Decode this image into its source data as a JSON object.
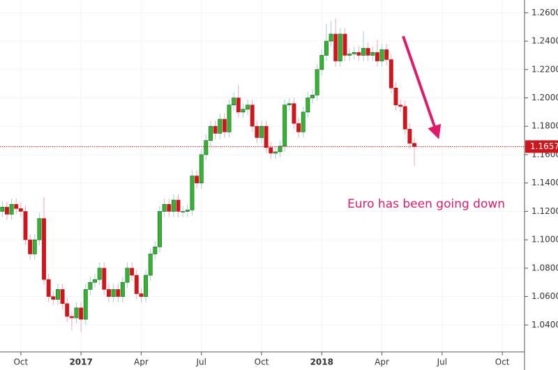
{
  "chart_data": {
    "type": "candlestick",
    "annotation": "Euro has been going down",
    "up_color": "#33b533",
    "down_color": "#d0161d",
    "grid": true,
    "ylim": [
      1.021,
      1.269
    ],
    "yticks": [
      {
        "value": 1.04,
        "label": "1.0400"
      },
      {
        "value": 1.06,
        "label": "1.0600"
      },
      {
        "value": 1.08,
        "label": "1.0800"
      },
      {
        "value": 1.1,
        "label": "1.1000"
      },
      {
        "value": 1.12,
        "label": "1.1200"
      },
      {
        "value": 1.14,
        "label": "1.1400"
      },
      {
        "value": 1.16,
        "label": "1.1600"
      },
      {
        "value": 1.18,
        "label": "1.1800"
      },
      {
        "value": 1.2,
        "label": "1.2000"
      },
      {
        "value": 1.22,
        "label": "1.2200"
      },
      {
        "value": 1.24,
        "label": "1.2400"
      },
      {
        "value": 1.26,
        "label": "1.2600"
      }
    ],
    "categories": [
      null,
      null,
      null,
      null,
      "Oct",
      null,
      null,
      null,
      null,
      null,
      null,
      null,
      null,
      null,
      null,
      null,
      null,
      "2017",
      null,
      null,
      null,
      null,
      null,
      null,
      null,
      null,
      null,
      null,
      null,
      null,
      "Apr",
      null,
      null,
      null,
      null,
      null,
      null,
      null,
      null,
      null,
      null,
      null,
      null,
      "Jul",
      null,
      null,
      null,
      null,
      null,
      null,
      null,
      null,
      null,
      null,
      null,
      null,
      "Oct",
      null,
      null,
      null,
      null,
      null,
      null,
      null,
      null,
      null,
      null,
      null,
      null,
      "2018",
      null,
      null,
      null,
      null,
      null,
      null,
      null,
      null,
      null,
      null,
      null,
      null,
      "Apr",
      null,
      null,
      null,
      null,
      null,
      null,
      null,
      null,
      null,
      null,
      null,
      null,
      "Jul",
      null,
      null,
      null,
      null,
      null,
      null,
      null,
      null,
      null,
      null,
      null,
      null,
      "Oct",
      null,
      null,
      null,
      null
    ],
    "open": [
      1.12,
      1.123,
      1.118,
      1.125,
      1.122,
      1.12,
      1.1,
      1.09,
      1.1,
      1.115,
      1.072,
      1.06,
      1.058,
      1.065,
      1.055,
      1.046,
      1.045,
      1.052,
      1.044,
      1.065,
      1.07,
      1.072,
      1.08,
      1.065,
      1.06,
      1.065,
      1.06,
      1.07,
      1.08,
      1.075,
      1.062,
      1.06,
      1.075,
      1.09,
      1.095,
      1.12,
      1.125,
      1.12,
      1.128,
      1.12,
      1.12,
      1.121,
      1.145,
      1.14,
      1.16,
      1.17,
      1.18,
      1.175,
      1.185,
      1.176,
      1.195,
      1.2,
      1.19,
      1.192,
      1.195,
      1.18,
      1.172,
      1.18,
      1.165,
      1.161,
      1.162,
      1.166,
      1.195,
      1.196,
      1.182,
      1.176,
      1.19,
      1.2,
      1.202,
      1.22,
      1.23,
      1.24,
      1.245,
      1.226,
      1.245,
      1.23,
      1.231,
      1.232,
      1.23,
      1.235,
      1.23,
      1.232,
      1.226,
      1.234,
      1.227,
      1.207,
      1.195,
      1.194,
      1.178,
      1.168,
      null,
      null,
      null,
      null,
      null,
      null,
      null,
      null,
      null,
      null,
      null,
      null,
      null,
      null,
      null,
      null,
      null,
      null,
      null,
      null,
      null,
      null,
      null
    ],
    "high": [
      1.127,
      1.127,
      1.129,
      1.129,
      1.126,
      1.124,
      1.104,
      1.104,
      1.119,
      1.13,
      1.076,
      1.064,
      1.069,
      1.069,
      1.059,
      1.05,
      1.056,
      1.056,
      1.069,
      1.074,
      1.076,
      1.084,
      1.084,
      1.069,
      1.069,
      1.069,
      1.074,
      1.084,
      1.084,
      1.079,
      1.066,
      1.079,
      1.094,
      1.099,
      1.124,
      1.129,
      1.129,
      1.132,
      1.132,
      1.124,
      1.125,
      1.149,
      1.149,
      1.164,
      1.174,
      1.184,
      1.184,
      1.189,
      1.189,
      1.199,
      1.204,
      1.209,
      1.196,
      1.199,
      1.199,
      1.184,
      1.184,
      1.184,
      1.169,
      1.166,
      1.17,
      1.199,
      1.2,
      1.2,
      1.186,
      1.194,
      1.204,
      1.206,
      1.224,
      1.234,
      1.252,
      1.254,
      1.256,
      1.249,
      1.249,
      1.235,
      1.236,
      1.236,
      1.247,
      1.239,
      1.236,
      1.241,
      1.238,
      1.238,
      1.231,
      1.211,
      1.199,
      1.198,
      1.182,
      1.172,
      null,
      null,
      null,
      null,
      null,
      null,
      null,
      null,
      null,
      null,
      null,
      null,
      null,
      null,
      null,
      null,
      null,
      null,
      null,
      null,
      null,
      null,
      null
    ],
    "low": [
      1.116,
      1.114,
      1.114,
      1.118,
      1.116,
      1.096,
      1.086,
      1.086,
      1.096,
      1.068,
      1.056,
      1.054,
      1.054,
      1.051,
      1.042,
      1.036,
      1.041,
      1.035,
      1.04,
      1.061,
      1.066,
      1.068,
      1.061,
      1.056,
      1.056,
      1.056,
      1.056,
      1.066,
      1.071,
      1.058,
      1.056,
      1.056,
      1.071,
      1.086,
      1.091,
      1.116,
      1.116,
      1.116,
      1.116,
      1.116,
      1.116,
      1.117,
      1.136,
      1.136,
      1.156,
      1.166,
      1.171,
      1.171,
      1.172,
      1.172,
      1.191,
      1.186,
      1.186,
      1.188,
      1.176,
      1.168,
      1.168,
      1.161,
      1.157,
      1.157,
      1.158,
      1.162,
      1.191,
      1.178,
      1.172,
      1.172,
      1.186,
      1.196,
      1.198,
      1.216,
      1.226,
      1.236,
      1.222,
      1.222,
      1.226,
      1.226,
      1.227,
      1.226,
      1.226,
      1.226,
      1.226,
      1.222,
      1.222,
      1.223,
      1.203,
      1.191,
      1.19,
      1.174,
      1.164,
      1.152,
      null,
      null,
      null,
      null,
      null,
      null,
      null,
      null,
      null,
      null,
      null,
      null,
      null,
      null,
      null,
      null,
      null,
      null,
      null,
      null,
      null,
      null,
      null
    ],
    "close": [
      1.123,
      1.118,
      1.125,
      1.122,
      1.12,
      1.1,
      1.09,
      1.1,
      1.115,
      1.072,
      1.06,
      1.058,
      1.065,
      1.055,
      1.046,
      1.045,
      1.052,
      1.044,
      1.065,
      1.07,
      1.072,
      1.08,
      1.065,
      1.06,
      1.065,
      1.06,
      1.07,
      1.08,
      1.075,
      1.062,
      1.06,
      1.075,
      1.09,
      1.095,
      1.12,
      1.125,
      1.12,
      1.128,
      1.12,
      1.12,
      1.121,
      1.145,
      1.14,
      1.16,
      1.17,
      1.18,
      1.175,
      1.185,
      1.176,
      1.195,
      1.2,
      1.19,
      1.192,
      1.195,
      1.18,
      1.172,
      1.18,
      1.165,
      1.161,
      1.162,
      1.166,
      1.195,
      1.196,
      1.182,
      1.176,
      1.19,
      1.2,
      1.202,
      1.22,
      1.23,
      1.24,
      1.245,
      1.226,
      1.245,
      1.23,
      1.231,
      1.232,
      1.23,
      1.235,
      1.23,
      1.232,
      1.226,
      1.234,
      1.227,
      1.207,
      1.195,
      1.194,
      1.178,
      1.168,
      1.1657,
      null,
      null,
      null,
      null,
      null,
      null,
      null,
      null,
      null,
      null,
      null,
      null,
      null,
      null,
      null,
      null,
      null,
      null,
      null,
      null,
      null,
      null,
      null
    ]
  }
}
